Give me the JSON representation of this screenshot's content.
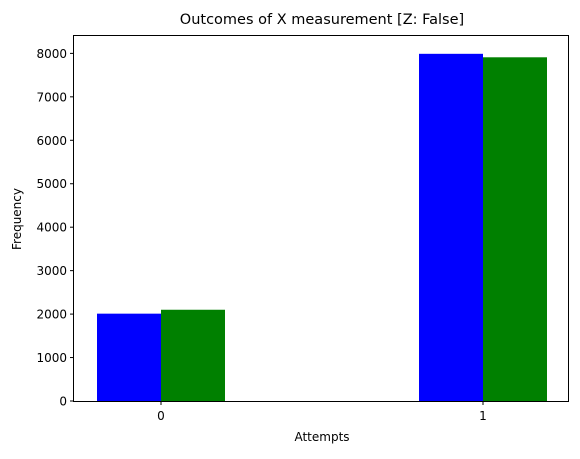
{
  "chart_data": {
    "type": "bar",
    "title": "Outcomes of X measurement [Z: False]",
    "xlabel": "Attempts",
    "ylabel": "Frequency",
    "categories": [
      "0",
      "1"
    ],
    "series": [
      {
        "color": "#0000ff",
        "values": [
          2010,
          7990
        ]
      },
      {
        "color": "#008000",
        "values": [
          2100,
          7910
        ]
      }
    ],
    "ylim": [
      0,
      8400
    ],
    "yticks": [
      0,
      1000,
      2000,
      3000,
      4000,
      5000,
      6000,
      7000,
      8000
    ],
    "xticks": [
      "0",
      "1"
    ],
    "grid": false,
    "legend": "none"
  }
}
